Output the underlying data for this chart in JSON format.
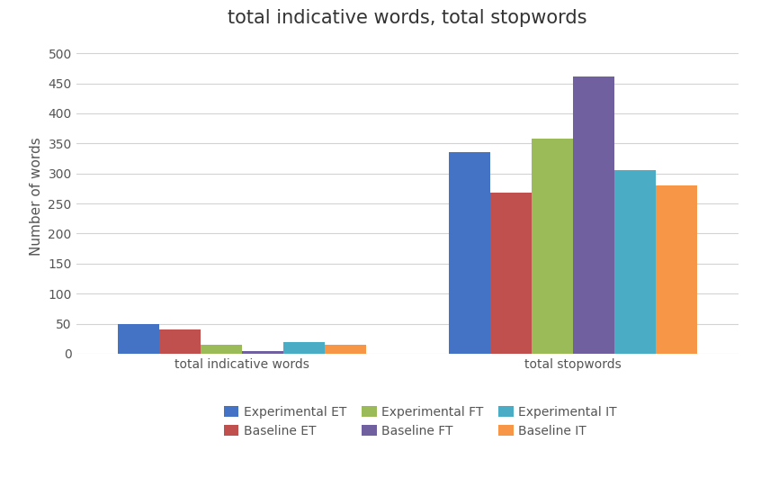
{
  "title": "total indicative words, total stopwords",
  "ylabel": "Number of words",
  "categories": [
    "total indicative words",
    "total stopwords"
  ],
  "series": [
    {
      "label": "Experimental ET",
      "color": "#4472c4",
      "values": [
        49,
        335
      ]
    },
    {
      "label": "Baseline ET",
      "color": "#c0504d",
      "values": [
        41,
        268
      ]
    },
    {
      "label": "Experimental FT",
      "color": "#9bbb59",
      "values": [
        15,
        358
      ]
    },
    {
      "label": "Baseline FT",
      "color": "#7060a0",
      "values": [
        5,
        462
      ]
    },
    {
      "label": "Experimental IT",
      "color": "#4bacc6",
      "values": [
        20,
        305
      ]
    },
    {
      "label": "Baseline IT",
      "color": "#f79646",
      "values": [
        15,
        280
      ]
    }
  ],
  "ylim": [
    0,
    525
  ],
  "yticks": [
    0,
    50,
    100,
    150,
    200,
    250,
    300,
    350,
    400,
    450,
    500
  ],
  "background_color": "#ffffff",
  "grid_color": "#d3d3d3",
  "title_fontsize": 15,
  "axis_label_fontsize": 11,
  "tick_fontsize": 10,
  "legend_fontsize": 10,
  "bar_width": 0.1,
  "group_centers": [
    0.3,
    1.1
  ]
}
